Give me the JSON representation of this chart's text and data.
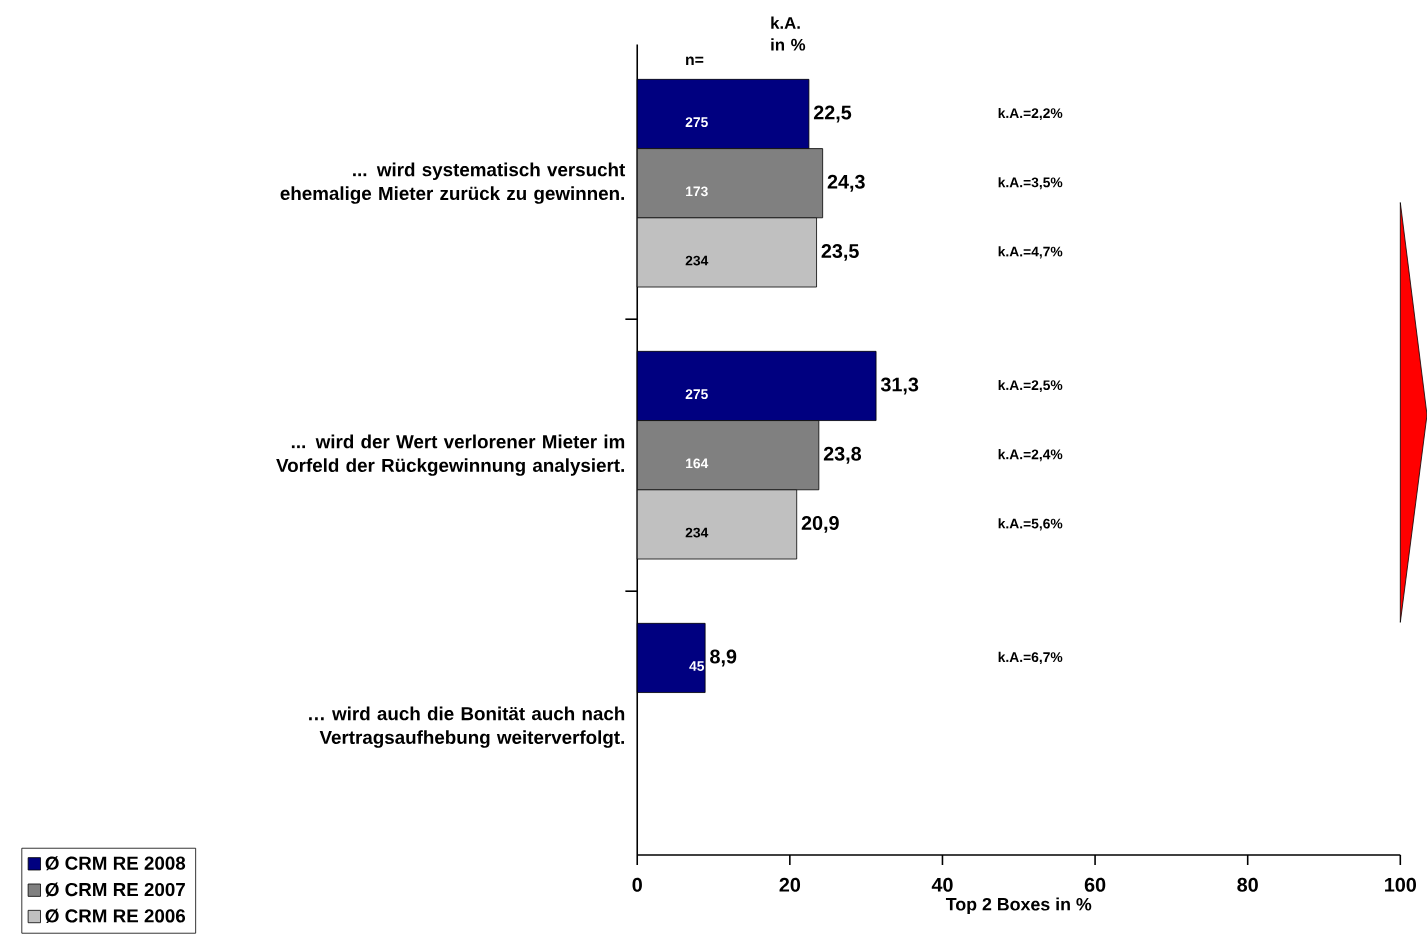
{
  "chart_data": {
    "type": "bar",
    "orientation": "horizontal",
    "xlabel": "Top 2 Boxes in %",
    "categories": [
      "... wird systematisch versucht ehemalige Mieter zurück zu gewinnen.",
      "... wird der Wert verlorener Mieter im Vorfeld der Rückgewinnung analysiert.",
      "… wird auch die Bonität auch nach Vertragsaufhebung weiterverfolgt."
    ],
    "series": [
      {
        "name": "Ø CRM RE 2008",
        "color": "#000080",
        "values": [
          22.5,
          31.3,
          8.9
        ],
        "value_labels": [
          "22,5",
          "31,3",
          "8,9"
        ]
      },
      {
        "name": "Ø CRM RE 2007",
        "color": "#808080",
        "values": [
          24.3,
          23.8,
          null
        ],
        "value_labels": [
          "24,3",
          "23,8",
          null
        ]
      },
      {
        "name": "Ø CRM RE 2006",
        "color": "#c0c0c0",
        "values": [
          23.5,
          20.9,
          null
        ],
        "value_labels": [
          "23,5",
          "20,9",
          null
        ]
      }
    ],
    "xlim": [
      0,
      100
    ],
    "xticks": [
      0,
      20,
      40,
      60,
      80,
      100
    ],
    "legend": "bottom left",
    "annotations": [
      "n=",
      "k.A. in %",
      "275",
      "k.A.=2,2%",
      "275",
      "k.A.=2,5%",
      "45",
      "k.A.=6,7%",
      "173",
      "k.A.=3,5%",
      "164",
      "k.A.=2,4%",
      "234",
      "k.A.=4,7%",
      "234",
      "k.A.=5,6%"
    ]
  }
}
